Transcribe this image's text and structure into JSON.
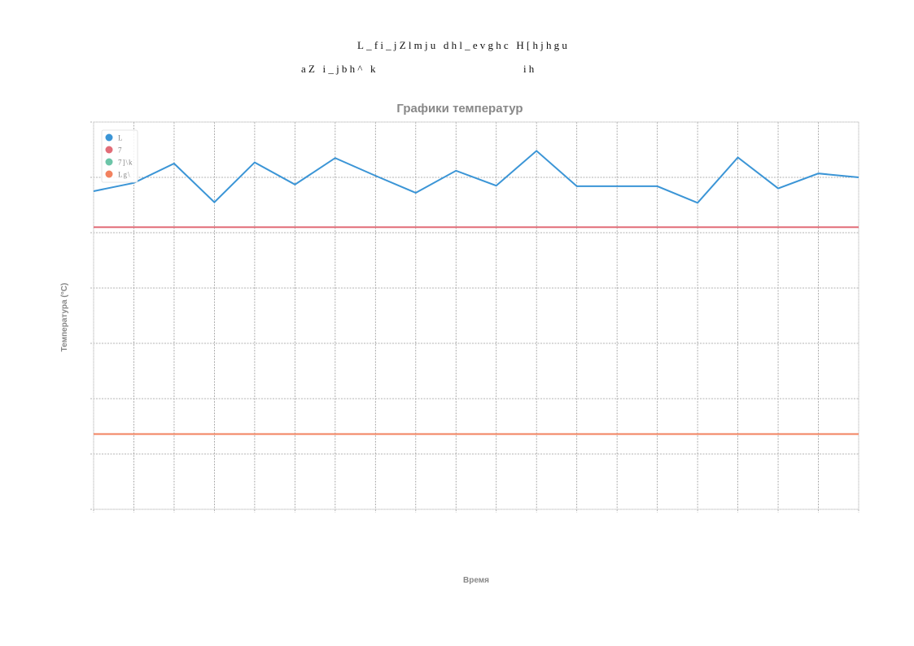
{
  "header": {
    "line1": "L_fi_jZlmju dhl_evghc H[hjhgu",
    "line2_left": "aZ i_jbh^ k",
    "line2_right": "ih"
  },
  "chart_data": {
    "type": "line",
    "title": "Графики температур",
    "xlabel": "Время",
    "ylabel": "Температура (°C)",
    "grid": true,
    "legend_position": "top-left",
    "ylim": [
      0,
      7
    ],
    "x_points": 20,
    "series": [
      {
        "name": "L",
        "color": "#3b95d6",
        "values": [
          5.75,
          5.9,
          6.25,
          5.55,
          6.27,
          5.87,
          6.35,
          6.03,
          5.72,
          6.12,
          5.85,
          6.48,
          5.84,
          5.84,
          5.84,
          5.54,
          6.36,
          5.8,
          6.07,
          6.0
        ]
      },
      {
        "name": "7",
        "color": "#e26d78",
        "values": [
          5.1,
          5.1,
          5.1,
          5.1,
          5.1,
          5.1,
          5.1,
          5.1,
          5.1,
          5.1,
          5.1,
          5.1,
          5.1,
          5.1,
          5.1,
          5.1,
          5.1,
          5.1,
          5.1,
          5.1
        ]
      },
      {
        "name": "7]\\k",
        "color": "#6cc5a8",
        "values": []
      },
      {
        "name": "Lg\\",
        "color": "#f2825f",
        "values": [
          1.36,
          1.36,
          1.36,
          1.36,
          1.36,
          1.36,
          1.36,
          1.36,
          1.36,
          1.36,
          1.36,
          1.36,
          1.36,
          1.36,
          1.36,
          1.36,
          1.36,
          1.36,
          1.36,
          1.36
        ]
      }
    ]
  }
}
